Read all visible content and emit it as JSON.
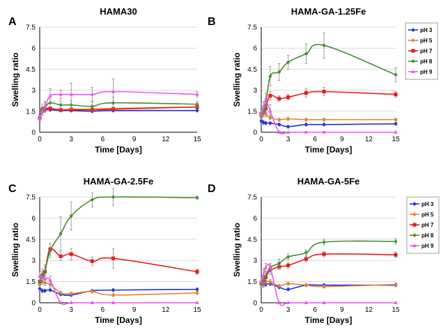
{
  "series_styles": [
    {
      "name": "pH 3",
      "color": "#1f2fe0",
      "marker": "diamond"
    },
    {
      "name": "pH 5",
      "color": "#e8822a",
      "marker": "diamond"
    },
    {
      "name": "pH 7",
      "color": "#e81c1c",
      "marker": "square"
    },
    {
      "name": "pH 8",
      "color": "#4a8a30",
      "marker": "diamond"
    },
    {
      "name": "pH 9",
      "color": "#ee55ee",
      "marker": "triangle"
    }
  ],
  "chart_data": [
    {
      "type": "line",
      "letter": "A",
      "title": "HAMA30",
      "xlabel": "Time [Days]",
      "ylabel": "Swelling ratio",
      "xlim": [
        0,
        15
      ],
      "ylim": [
        0,
        7.5
      ],
      "xticks": [
        "0",
        "3",
        "6",
        "9",
        "12",
        "15"
      ],
      "yticks": [
        "0",
        "1.5",
        "3",
        "4.5",
        "6",
        "7.5"
      ],
      "grid": "horizontal",
      "legend": false,
      "series": [
        {
          "name": "pH 3",
          "x": [
            0,
            0.25,
            0.5,
            1,
            2,
            3,
            5,
            7,
            15
          ],
          "y": [
            1.0,
            1.5,
            1.6,
            1.6,
            1.55,
            1.55,
            1.5,
            1.55,
            1.55
          ],
          "err": [
            0.2,
            0.2,
            0.15,
            0.1,
            0.1,
            0.1,
            0.1,
            0.1,
            0.1
          ]
        },
        {
          "name": "pH 5",
          "x": [
            0,
            0.25,
            0.5,
            1,
            2,
            3,
            5,
            7,
            15
          ],
          "y": [
            1.0,
            1.5,
            1.65,
            1.7,
            1.6,
            1.65,
            1.65,
            1.7,
            1.8
          ],
          "err": [
            0.2,
            0.2,
            0.15,
            0.1,
            0.1,
            0.1,
            0.1,
            0.1,
            0.1
          ]
        },
        {
          "name": "pH 7",
          "x": [
            0,
            0.25,
            0.5,
            1,
            2,
            3,
            5,
            7,
            15
          ],
          "y": [
            1.0,
            1.6,
            1.7,
            1.7,
            1.6,
            1.6,
            1.6,
            1.65,
            1.8
          ],
          "err": [
            0.2,
            0.2,
            0.15,
            0.1,
            0.1,
            0.1,
            0.1,
            0.1,
            0.1
          ]
        },
        {
          "name": "pH 8",
          "x": [
            0,
            0.25,
            0.5,
            1,
            2,
            3,
            5,
            7,
            15
          ],
          "y": [
            1.0,
            1.7,
            1.8,
            2.1,
            1.95,
            1.95,
            1.85,
            2.1,
            2.0
          ],
          "err": [
            0.2,
            0.3,
            0.3,
            0.3,
            0.3,
            0.3,
            0.3,
            0.4,
            0.2
          ]
        },
        {
          "name": "pH 9",
          "x": [
            0,
            0.25,
            0.5,
            1,
            2,
            3,
            5,
            7,
            15
          ],
          "y": [
            1.0,
            1.5,
            1.8,
            2.6,
            2.7,
            2.7,
            2.7,
            2.9,
            2.7
          ],
          "err": [
            0.2,
            0.3,
            0.4,
            0.5,
            0.3,
            0.8,
            0.5,
            0.9,
            0.2
          ]
        }
      ]
    },
    {
      "type": "line",
      "letter": "B",
      "title": "HAMA-GA-1.25Fe",
      "xlabel": "Time [Days]",
      "ylabel": "Swelling ratio",
      "xlim": [
        0,
        15
      ],
      "ylim": [
        0,
        7.5
      ],
      "xticks": [
        "0",
        "3",
        "6",
        "9",
        "12",
        "15"
      ],
      "yticks": [
        "0",
        "1.5",
        "3",
        "4.5",
        "6",
        "7.5"
      ],
      "grid": "horizontal",
      "legend": true,
      "series": [
        {
          "name": "pH 3",
          "x": [
            0,
            0.25,
            0.5,
            1,
            2,
            3,
            5,
            7,
            15
          ],
          "y": [
            0.8,
            0.7,
            0.65,
            0.65,
            0.55,
            0.4,
            0.55,
            0.55,
            0.6
          ],
          "err": [
            0.15,
            0.15,
            0.1,
            0.1,
            0.1,
            0.1,
            0.1,
            0.1,
            0.1
          ]
        },
        {
          "name": "pH 5",
          "x": [
            0,
            0.25,
            0.5,
            1,
            2,
            3,
            5,
            7,
            15
          ],
          "y": [
            1.1,
            1.3,
            1.3,
            1.05,
            0.9,
            0.95,
            0.9,
            0.9,
            0.9
          ],
          "err": [
            0.2,
            0.2,
            0.2,
            0.15,
            0.1,
            0.1,
            0.1,
            0.1,
            0.1
          ]
        },
        {
          "name": "pH 7",
          "x": [
            0,
            0.25,
            0.5,
            1,
            2,
            3,
            5,
            7,
            15
          ],
          "y": [
            1.3,
            1.5,
            1.7,
            2.6,
            2.4,
            2.5,
            2.8,
            2.9,
            2.7
          ],
          "err": [
            0.2,
            0.2,
            0.3,
            0.3,
            0.2,
            0.2,
            0.3,
            0.3,
            0.2
          ]
        },
        {
          "name": "pH 8",
          "x": [
            0,
            0.25,
            0.5,
            1,
            2,
            3,
            5,
            7,
            15
          ],
          "y": [
            1.2,
            1.5,
            1.9,
            4.0,
            4.3,
            5.0,
            5.6,
            6.2,
            4.1
          ],
          "err": [
            0.3,
            0.4,
            0.5,
            0.7,
            0.6,
            0.5,
            0.7,
            0.9,
            0.5
          ]
        },
        {
          "name": "pH 9",
          "x": [
            0,
            0.25,
            0.5,
            1,
            2,
            3,
            5,
            7,
            15
          ],
          "y": [
            1.3,
            1.8,
            2.3,
            1.5,
            0.0,
            0.0,
            0.0,
            0.0,
            0.0
          ],
          "err": [
            0.3,
            0.4,
            0.5,
            0.5,
            0,
            0,
            0,
            0,
            0
          ]
        }
      ]
    },
    {
      "type": "line",
      "letter": "C",
      "title": "HAMA-GA-2.5Fe",
      "xlabel": "Time [Days]",
      "ylabel": "Swelling ratio",
      "xlim": [
        0,
        15
      ],
      "ylim": [
        0,
        7.5
      ],
      "xticks": [
        "0",
        "3",
        "6",
        "9",
        "12",
        "15"
      ],
      "yticks": [
        "0",
        "1.5",
        "3",
        "4.5",
        "6",
        "7.5"
      ],
      "grid": "horizontal",
      "legend": false,
      "series": [
        {
          "name": "pH 3",
          "x": [
            0,
            0.25,
            0.5,
            1,
            2,
            3,
            5,
            7,
            15
          ],
          "y": [
            1.0,
            0.85,
            0.85,
            0.9,
            0.6,
            0.55,
            0.85,
            0.9,
            0.95
          ],
          "err": [
            0.2,
            0.15,
            0.1,
            0.1,
            0.1,
            0.1,
            0.1,
            0.1,
            0.1
          ]
        },
        {
          "name": "pH 5",
          "x": [
            0,
            0.25,
            0.5,
            1,
            2,
            3,
            5,
            7,
            15
          ],
          "y": [
            1.3,
            1.5,
            1.4,
            1.3,
            0.7,
            0.65,
            0.8,
            0.55,
            0.7
          ],
          "err": [
            0.2,
            0.2,
            0.2,
            0.2,
            0.1,
            0.1,
            0.1,
            0.1,
            0.1
          ]
        },
        {
          "name": "pH 7",
          "x": [
            0,
            0.25,
            0.5,
            1,
            2,
            3,
            5,
            7,
            15
          ],
          "y": [
            1.5,
            1.9,
            2.2,
            3.8,
            3.3,
            3.45,
            2.95,
            3.15,
            2.2
          ],
          "err": [
            0.3,
            0.3,
            0.3,
            0.4,
            0.3,
            0.4,
            0.3,
            0.7,
            0.2
          ]
        },
        {
          "name": "pH 8",
          "x": [
            0,
            0.25,
            0.5,
            1,
            2,
            3,
            5,
            7,
            15
          ],
          "y": [
            1.5,
            2.0,
            2.2,
            3.7,
            4.9,
            6.15,
            7.3,
            7.5,
            7.45
          ],
          "err": [
            0.3,
            0.4,
            0.5,
            0.5,
            1.2,
            1.0,
            0.5,
            0.6,
            0.1
          ]
        },
        {
          "name": "pH 9",
          "x": [
            0,
            0.25,
            0.5,
            1,
            2,
            3,
            5,
            7,
            15
          ],
          "y": [
            1.9,
            1.8,
            1.7,
            1.6,
            0.0,
            0.0,
            0.0,
            0.0,
            0.0
          ],
          "err": [
            0.3,
            0.3,
            0.3,
            0.3,
            0,
            0,
            0,
            0,
            0
          ]
        }
      ]
    },
    {
      "type": "line",
      "letter": "D",
      "title": "HAMA-GA-5Fe",
      "xlabel": "Time [Days]",
      "ylabel": "Swelling ratio",
      "xlim": [
        0,
        15
      ],
      "ylim": [
        0,
        7.5
      ],
      "xticks": [
        "0",
        "3",
        "6",
        "9",
        "12",
        "15"
      ],
      "yticks": [
        "0",
        "1.5",
        "3",
        "4.5",
        "6",
        "7.5"
      ],
      "grid": "horizontal",
      "legend": true,
      "series": [
        {
          "name": "pH 3",
          "x": [
            0,
            0.25,
            0.5,
            1,
            2,
            3,
            5,
            7,
            15
          ],
          "y": [
            1.3,
            1.3,
            1.3,
            1.35,
            1.1,
            0.95,
            1.25,
            1.25,
            1.25
          ],
          "err": [
            0.2,
            0.2,
            0.15,
            0.15,
            0.1,
            0.1,
            0.1,
            0.1,
            0.1
          ]
        },
        {
          "name": "pH 5",
          "x": [
            0,
            0.25,
            0.5,
            1,
            2,
            3,
            5,
            7,
            15
          ],
          "y": [
            1.3,
            1.4,
            1.5,
            1.5,
            1.2,
            1.35,
            1.25,
            1.15,
            1.3
          ],
          "err": [
            0.2,
            0.2,
            0.2,
            0.15,
            0.1,
            0.1,
            0.1,
            0.1,
            0.1
          ]
        },
        {
          "name": "pH 7",
          "x": [
            0,
            0.25,
            0.5,
            1,
            2,
            3,
            5,
            7,
            15
          ],
          "y": [
            1.4,
            1.6,
            1.8,
            2.3,
            2.55,
            2.65,
            3.1,
            3.45,
            3.4
          ],
          "err": [
            0.2,
            0.2,
            0.3,
            0.3,
            0.2,
            0.2,
            0.2,
            0.2,
            0.2
          ]
        },
        {
          "name": "pH 8",
          "x": [
            0,
            0.25,
            0.5,
            1,
            2,
            3,
            5,
            7,
            15
          ],
          "y": [
            1.4,
            1.6,
            1.9,
            2.5,
            2.8,
            3.25,
            3.55,
            4.3,
            4.35
          ],
          "err": [
            0.2,
            0.3,
            0.3,
            0.3,
            0.3,
            0.2,
            0.2,
            0.2,
            0.2
          ]
        },
        {
          "name": "pH 9",
          "x": [
            0,
            0.25,
            0.5,
            1,
            2,
            3,
            5,
            7,
            15
          ],
          "y": [
            1.5,
            2.0,
            2.5,
            2.5,
            0.0,
            0.0,
            0.0,
            0.0,
            0.0
          ],
          "err": [
            0.3,
            0.4,
            0.3,
            0.2,
            0,
            0,
            0,
            0,
            0
          ]
        }
      ]
    }
  ]
}
